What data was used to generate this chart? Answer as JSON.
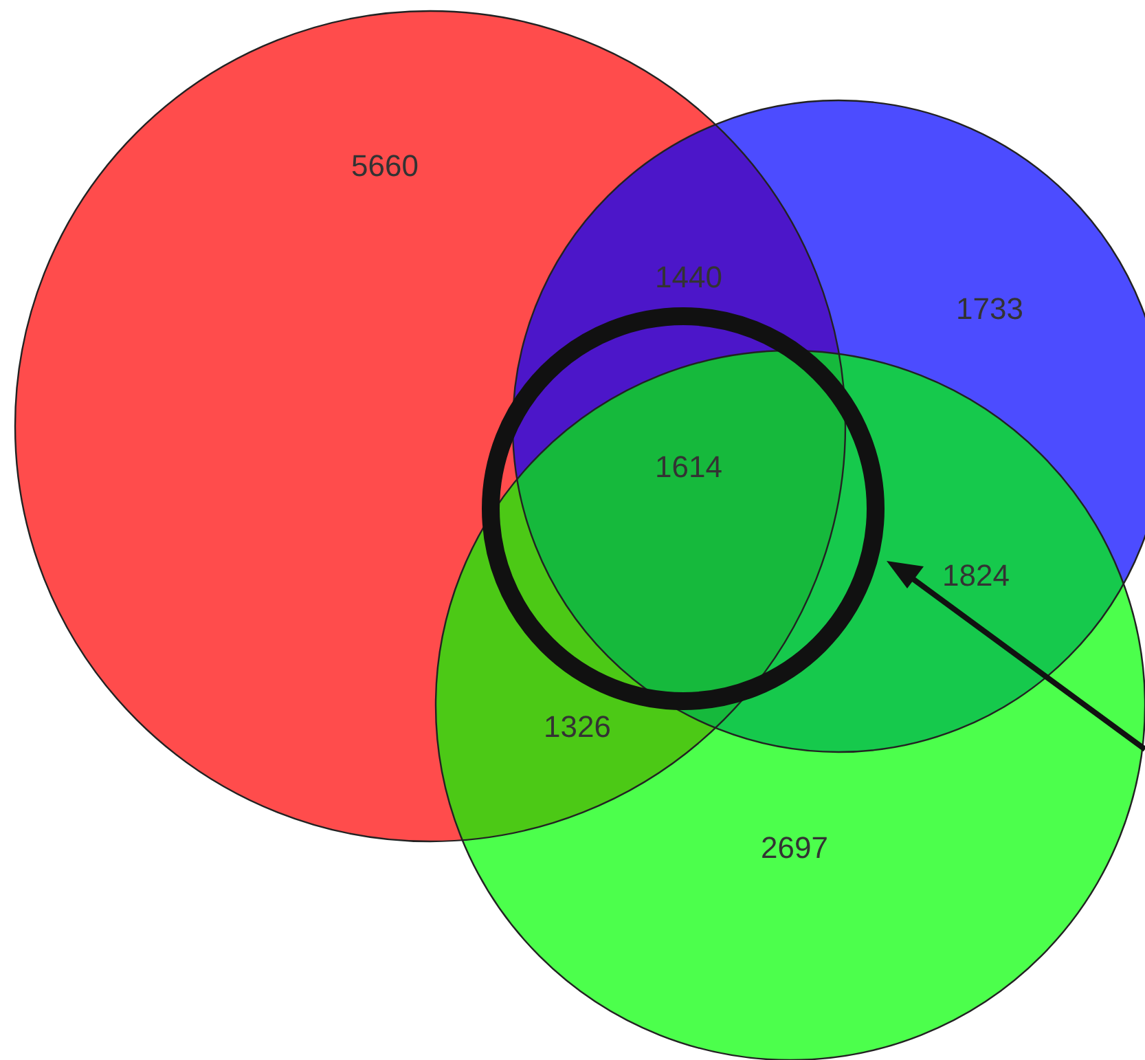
{
  "chart_data": {
    "type": "other",
    "categories": [
      null,
      null,
      null,
      null,
      null,
      null,
      null
    ],
    "values": [
      5660,
      1440,
      1733,
      1614,
      1824,
      1326,
      2697
    ],
    "data_labels": true
  }
}
